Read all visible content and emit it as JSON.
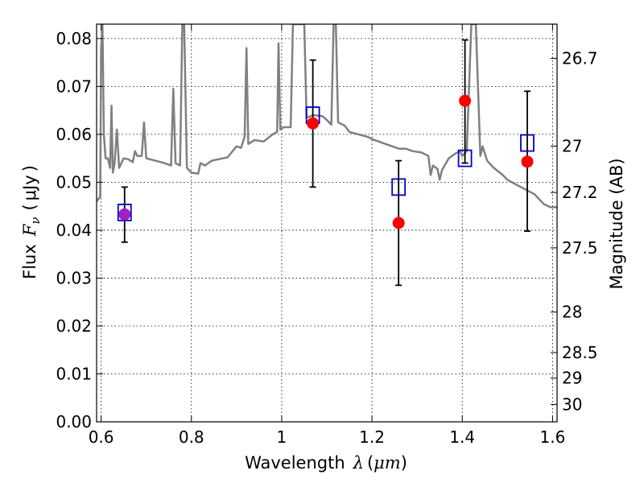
{
  "chart_data": {
    "type": "scatter",
    "xlabel": "Wavelength",
    "xlabel_symbol": "λ",
    "xlabel_unit": "μm",
    "ylabel": "Flux",
    "ylabel_symbol": "F",
    "ylabel_subscript": "ν",
    "ylabel_unit": "μJy",
    "y2label": "Magnitude (AB)",
    "xlim": [
      0.59,
      1.61
    ],
    "ylim": [
      0.0,
      0.083
    ],
    "grid": true,
    "x_ticks": [
      {
        "value": 0.6,
        "label": "0.6"
      },
      {
        "value": 0.8,
        "label": "0.8"
      },
      {
        "value": 1.0,
        "label": "1"
      },
      {
        "value": 1.2,
        "label": "1.2"
      },
      {
        "value": 1.4,
        "label": "1.4"
      },
      {
        "value": 1.6,
        "label": "1.6"
      }
    ],
    "y_ticks": [
      {
        "value": 0.0,
        "label": "0.00"
      },
      {
        "value": 0.01,
        "label": "0.01"
      },
      {
        "value": 0.02,
        "label": "0.02"
      },
      {
        "value": 0.03,
        "label": "0.03"
      },
      {
        "value": 0.04,
        "label": "0.04"
      },
      {
        "value": 0.05,
        "label": "0.05"
      },
      {
        "value": 0.06,
        "label": "0.06"
      },
      {
        "value": 0.07,
        "label": "0.07"
      },
      {
        "value": 0.08,
        "label": "0.08"
      }
    ],
    "y2_ticks": [
      {
        "mag": 26.7,
        "label": "26.7"
      },
      {
        "mag": 27.0,
        "label": "27"
      },
      {
        "mag": 27.2,
        "label": "27.2"
      },
      {
        "mag": 27.5,
        "label": "27.5"
      },
      {
        "mag": 28.0,
        "label": "28"
      },
      {
        "mag": 28.5,
        "label": "28.5"
      },
      {
        "mag": 29.0,
        "label": "29"
      },
      {
        "mag": 30.0,
        "label": "30"
      }
    ],
    "colors": {
      "model": "#808080",
      "observed": "#ff0000",
      "model_band": "#0000cc",
      "overlap": "#a020c0",
      "error_bar": "#000000"
    },
    "model_spectrum": [
      [
        0.59,
        0.046
      ],
      [
        0.598,
        0.047
      ],
      [
        0.6,
        0.078
      ],
      [
        0.603,
        0.083
      ],
      [
        0.606,
        0.06
      ],
      [
        0.61,
        0.055
      ],
      [
        0.615,
        0.055
      ],
      [
        0.62,
        0.053
      ],
      [
        0.623,
        0.066
      ],
      [
        0.626,
        0.052
      ],
      [
        0.63,
        0.054
      ],
      [
        0.635,
        0.061
      ],
      [
        0.64,
        0.053
      ],
      [
        0.65,
        0.055
      ],
      [
        0.66,
        0.0548
      ],
      [
        0.67,
        0.0542
      ],
      [
        0.675,
        0.0565
      ],
      [
        0.68,
        0.0555
      ],
      [
        0.69,
        0.0555
      ],
      [
        0.695,
        0.0625
      ],
      [
        0.7,
        0.055
      ],
      [
        0.72,
        0.0545
      ],
      [
        0.74,
        0.054
      ],
      [
        0.755,
        0.0535
      ],
      [
        0.76,
        0.0695
      ],
      [
        0.765,
        0.054
      ],
      [
        0.775,
        0.0535
      ],
      [
        0.78,
        0.083
      ],
      [
        0.784,
        0.083
      ],
      [
        0.79,
        0.053
      ],
      [
        0.8,
        0.052
      ],
      [
        0.815,
        0.0518
      ],
      [
        0.82,
        0.054
      ],
      [
        0.83,
        0.0535
      ],
      [
        0.845,
        0.0545
      ],
      [
        0.86,
        0.0548
      ],
      [
        0.88,
        0.0552
      ],
      [
        0.9,
        0.0575
      ],
      [
        0.91,
        0.0572
      ],
      [
        0.918,
        0.0595
      ],
      [
        0.922,
        0.078
      ],
      [
        0.926,
        0.058
      ],
      [
        0.94,
        0.0588
      ],
      [
        0.96,
        0.0585
      ],
      [
        0.98,
        0.06
      ],
      [
        0.99,
        0.0605
      ],
      [
        0.993,
        0.079
      ],
      [
        0.997,
        0.061
      ],
      [
        1.005,
        0.0615
      ],
      [
        1.02,
        0.0615
      ],
      [
        1.025,
        0.083
      ],
      [
        1.05,
        0.083
      ],
      [
        1.055,
        0.0635
      ],
      [
        1.07,
        0.064
      ],
      [
        1.09,
        0.0638
      ],
      [
        1.1,
        0.063
      ],
      [
        1.11,
        0.062
      ],
      [
        1.115,
        0.083
      ],
      [
        1.12,
        0.083
      ],
      [
        1.125,
        0.0625
      ],
      [
        1.14,
        0.0618
      ],
      [
        1.15,
        0.0605
      ],
      [
        1.17,
        0.06
      ],
      [
        1.19,
        0.0595
      ],
      [
        1.2,
        0.059
      ],
      [
        1.215,
        0.0585
      ],
      [
        1.23,
        0.058
      ],
      [
        1.245,
        0.0575
      ],
      [
        1.26,
        0.057
      ],
      [
        1.275,
        0.057
      ],
      [
        1.29,
        0.0565
      ],
      [
        1.31,
        0.0562
      ],
      [
        1.325,
        0.0555
      ],
      [
        1.33,
        0.0515
      ],
      [
        1.335,
        0.0535
      ],
      [
        1.345,
        0.0528
      ],
      [
        1.35,
        0.0505
      ],
      [
        1.355,
        0.0525
      ],
      [
        1.37,
        0.055
      ],
      [
        1.385,
        0.056
      ],
      [
        1.395,
        0.0565
      ],
      [
        1.4,
        0.0555
      ],
      [
        1.41,
        0.0565
      ],
      [
        1.42,
        0.083
      ],
      [
        1.43,
        0.083
      ],
      [
        1.44,
        0.0555
      ],
      [
        1.445,
        0.0575
      ],
      [
        1.455,
        0.0545
      ],
      [
        1.47,
        0.053
      ],
      [
        1.49,
        0.0515
      ],
      [
        1.5,
        0.0505
      ],
      [
        1.52,
        0.0495
      ],
      [
        1.54,
        0.0485
      ],
      [
        1.56,
        0.0475
      ],
      [
        1.575,
        0.046
      ],
      [
        1.58,
        0.0455
      ],
      [
        1.595,
        0.0448
      ],
      [
        1.61,
        0.0448
      ]
    ],
    "photometry": [
      {
        "x": 0.652,
        "observed": 0.0433,
        "err_low": 0.0375,
        "err_high": 0.049,
        "model": 0.0437
      },
      {
        "x": 1.069,
        "observed": 0.0623,
        "err_low": 0.049,
        "err_high": 0.0755,
        "model": 0.064
      },
      {
        "x": 1.259,
        "observed": 0.0415,
        "err_low": 0.0285,
        "err_high": 0.0545,
        "model": 0.049
      },
      {
        "x": 1.406,
        "observed": 0.067,
        "err_low": 0.054,
        "err_high": 0.0797,
        "model": 0.055
      },
      {
        "x": 1.544,
        "observed": 0.0543,
        "err_low": 0.0398,
        "err_high": 0.069,
        "model": 0.0582
      }
    ]
  }
}
